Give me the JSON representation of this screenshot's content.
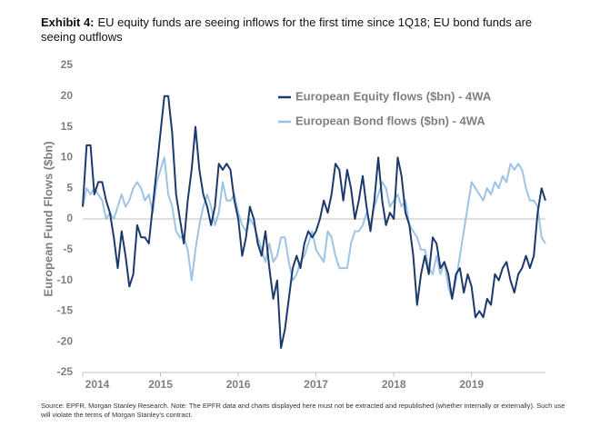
{
  "chart_data": {
    "type": "line",
    "title_label": "Exhibit 4:",
    "title": "EU equity funds are seeing inflows for the first time since 1Q18; EU bond funds are seeing outflows",
    "y_label": "European Fund Flows ($bn)",
    "source": "Source: EPFR, Morgan Stanley Research. Note: The EPFR data and charts displayed here must not be extracted and republished (whether internally or externally). Such use will violate the terms of Morgan Stanley's contract.",
    "xlim": [
      2014,
      2019.95
    ],
    "xticks": [
      2014,
      2015,
      2016,
      2017,
      2018,
      2019
    ],
    "ylim": [
      -25,
      25
    ],
    "yticks": [
      -25,
      -20,
      -15,
      -10,
      -5,
      0,
      5,
      10,
      15,
      20,
      25
    ],
    "x": [
      2014,
      2014.05,
      2014.1,
      2014.15,
      2014.2,
      2014.25,
      2014.3,
      2014.35,
      2014.4,
      2014.45,
      2014.5,
      2014.55,
      2014.6,
      2014.65,
      2014.7,
      2014.75,
      2014.8,
      2014.85,
      2014.9,
      2014.95,
      2015,
      2015.05,
      2015.1,
      2015.15,
      2015.2,
      2015.25,
      2015.3,
      2015.35,
      2015.4,
      2015.45,
      2015.5,
      2015.55,
      2015.6,
      2015.65,
      2015.7,
      2015.75,
      2015.8,
      2015.85,
      2015.9,
      2015.95,
      2016,
      2016.05,
      2016.1,
      2016.15,
      2016.2,
      2016.25,
      2016.3,
      2016.35,
      2016.4,
      2016.45,
      2016.5,
      2016.55,
      2016.6,
      2016.65,
      2016.7,
      2016.75,
      2016.8,
      2016.85,
      2016.9,
      2016.95,
      2017,
      2017.05,
      2017.1,
      2017.15,
      2017.2,
      2017.25,
      2017.3,
      2017.35,
      2017.4,
      2017.45,
      2017.5,
      2017.55,
      2017.6,
      2017.65,
      2017.7,
      2017.75,
      2017.8,
      2017.85,
      2017.9,
      2017.95,
      2018,
      2018.05,
      2018.1,
      2018.15,
      2018.2,
      2018.25,
      2018.3,
      2018.35,
      2018.4,
      2018.45,
      2018.5,
      2018.55,
      2018.6,
      2018.65,
      2018.7,
      2018.75,
      2018.8,
      2018.85,
      2018.9,
      2018.95,
      2019,
      2019.05,
      2019.1,
      2019.15,
      2019.2,
      2019.25,
      2019.3,
      2019.35,
      2019.4,
      2019.45,
      2019.5,
      2019.55,
      2019.6,
      2019.65,
      2019.7,
      2019.75,
      2019.8,
      2019.85,
      2019.9,
      2019.95
    ],
    "series": [
      {
        "name": "European Equity flows ($bn) - 4WA",
        "color": "#1b3a6b",
        "values": [
          2,
          12,
          12,
          4,
          6,
          6,
          3,
          1,
          -3,
          -8,
          -2,
          -6,
          -11,
          -9,
          -1,
          -3,
          -3,
          -4,
          2,
          8,
          14,
          20,
          20,
          14,
          4,
          0,
          -4,
          3,
          8,
          15,
          8,
          4,
          2,
          -1,
          2,
          9,
          8,
          9,
          8,
          3,
          0,
          -6,
          -3,
          2,
          0,
          -4,
          -6,
          -2,
          -8,
          -13,
          -10,
          -21,
          -18,
          -13,
          -8,
          -6,
          -8,
          -4,
          -2,
          -3,
          -2,
          0,
          3,
          1,
          4,
          9,
          8,
          3,
          8,
          5,
          0,
          3,
          7,
          2,
          -2,
          3,
          10,
          3,
          -1,
          1,
          0,
          10,
          7,
          1,
          -1,
          -6,
          -14,
          -9,
          -6,
          -9,
          -3,
          -4,
          -8,
          -7,
          -9,
          -13,
          -9,
          -8,
          -12,
          -9,
          -11,
          -16,
          -15,
          -16,
          -13,
          -14,
          -9,
          -10,
          -8,
          -7,
          -10,
          -12,
          -9,
          -8,
          -6,
          -8,
          -6,
          1,
          5,
          3
        ]
      },
      {
        "name": "European Bond flows ($bn) - 4WA",
        "color": "#9dc3e6",
        "values": [
          2,
          5,
          4,
          5,
          4,
          3,
          0,
          1,
          0,
          2,
          4,
          2,
          3,
          5,
          6,
          5,
          3,
          4,
          1,
          6,
          8,
          10,
          4,
          2,
          -2,
          -3,
          -3,
          -5,
          -10,
          -5,
          -1,
          2,
          4,
          2,
          -1,
          1,
          6,
          3,
          3,
          4,
          1,
          -1,
          -2,
          0,
          -1,
          -3,
          -5,
          -7,
          -4,
          -7,
          -6,
          -3,
          -3,
          -7,
          -10,
          -9,
          -7,
          -6,
          -4,
          -2,
          -5,
          -6,
          -7,
          -2,
          -3,
          -6,
          -8,
          -8,
          -8,
          -4,
          -2,
          -2,
          -1,
          1,
          -1,
          2,
          4,
          6,
          5,
          2,
          3,
          4,
          2,
          3,
          -1,
          -2,
          -3,
          -5,
          -5,
          -8,
          -9,
          -6,
          -9,
          -7,
          -11,
          -13,
          -10,
          -6,
          -2,
          2,
          6,
          5,
          4,
          3,
          5,
          4,
          6,
          5,
          7,
          6,
          9,
          8,
          9,
          8,
          5,
          3,
          3,
          2,
          -3,
          -4
        ]
      }
    ]
  }
}
